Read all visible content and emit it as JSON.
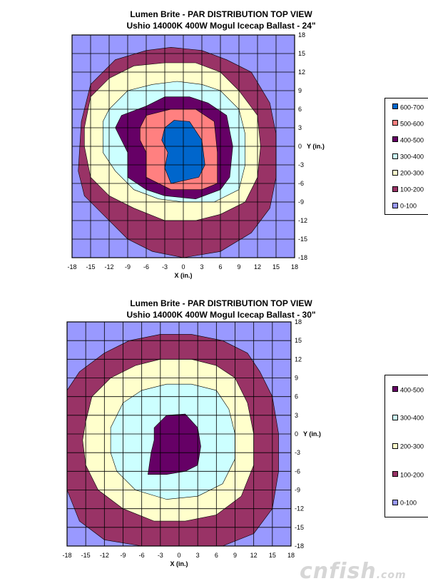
{
  "colors": {
    "0-100": "#9999ff",
    "100-200": "#993366",
    "200-300": "#ffffcc",
    "300-400": "#ccffff",
    "400-500": "#660066",
    "500-600": "#ff8080",
    "600-700": "#0066cc"
  },
  "chart_data": [
    {
      "type": "contour",
      "title": "Lumen Brite - PAR DISTRIBUTION TOP VIEW",
      "subtitle": "Ushio 14000K 400W Mogul Icecap Ballast - 24\"",
      "xlabel": "X (in.)",
      "ylabel": "Y (in.)",
      "xlim": [
        -18,
        18
      ],
      "ylim": [
        -18,
        18
      ],
      "xticks": [
        "-18",
        "-15",
        "-12",
        "-9",
        "-6",
        "-3",
        "0",
        "3",
        "6",
        "9",
        "12",
        "15",
        "18"
      ],
      "yticks": [
        "18",
        "15",
        "12",
        "9",
        "6",
        "3",
        "0",
        "-3",
        "-6",
        "-9",
        "-12",
        "-15",
        "-18"
      ],
      "legend": [
        "600-700",
        "500-600",
        "400-500",
        "300-400",
        "200-300",
        "100-200",
        "0-100"
      ],
      "contours": [
        {
          "level": "100-200",
          "points": [
            [
              -17,
              -4
            ],
            [
              -16.5,
              4
            ],
            [
              -15,
              10
            ],
            [
              -11,
              14
            ],
            [
              -6,
              15.5
            ],
            [
              -2,
              16
            ],
            [
              3,
              15.5
            ],
            [
              7,
              14
            ],
            [
              11,
              12
            ],
            [
              14,
              7
            ],
            [
              15,
              2
            ],
            [
              15,
              -5
            ],
            [
              14,
              -10
            ],
            [
              11,
              -14
            ],
            [
              6,
              -17
            ],
            [
              0,
              -18
            ],
            [
              -5,
              -17
            ],
            [
              -9,
              -15
            ],
            [
              -13,
              -11
            ],
            [
              -16,
              -8
            ]
          ]
        },
        {
          "level": "200-300",
          "points": [
            [
              -16,
              3
            ],
            [
              -15,
              8
            ],
            [
              -12,
              11
            ],
            [
              -8,
              13
            ],
            [
              -3,
              13.5
            ],
            [
              2,
              13.5
            ],
            [
              6,
              12
            ],
            [
              9,
              9
            ],
            [
              12,
              5
            ],
            [
              12.5,
              0
            ],
            [
              12,
              -5
            ],
            [
              10,
              -9
            ],
            [
              6,
              -11
            ],
            [
              2,
              -12
            ],
            [
              -3,
              -12
            ],
            [
              -8,
              -10
            ],
            [
              -12,
              -8
            ],
            [
              -15,
              -5
            ],
            [
              -16,
              0
            ]
          ]
        },
        {
          "level": "300-400",
          "points": [
            [
              -13,
              4
            ],
            [
              -12,
              6
            ],
            [
              -9,
              9
            ],
            [
              -5,
              10
            ],
            [
              -1,
              10.5
            ],
            [
              3,
              10
            ],
            [
              6,
              9
            ],
            [
              9,
              6
            ],
            [
              10,
              2
            ],
            [
              10,
              -3
            ],
            [
              9,
              -7
            ],
            [
              5,
              -9
            ],
            [
              0,
              -9
            ],
            [
              -4,
              -8.5
            ],
            [
              -8,
              -7
            ],
            [
              -11,
              -4
            ],
            [
              -13,
              -1
            ]
          ]
        },
        {
          "level": "400-500",
          "points": [
            [
              -11,
              3
            ],
            [
              -10,
              5
            ],
            [
              -6,
              6.5
            ],
            [
              -3,
              8
            ],
            [
              1,
              8
            ],
            [
              4,
              7
            ],
            [
              7,
              5
            ],
            [
              8,
              0
            ],
            [
              7.5,
              -5
            ],
            [
              6,
              -7
            ],
            [
              2,
              -8.5
            ],
            [
              -3,
              -8
            ],
            [
              -6,
              -7
            ],
            [
              -9,
              -5
            ],
            [
              -9,
              -1
            ],
            [
              -10,
              1
            ]
          ]
        },
        {
          "level": "500-600",
          "points": [
            [
              -7,
              3
            ],
            [
              -6,
              5
            ],
            [
              -2,
              6
            ],
            [
              2,
              6
            ],
            [
              5,
              4
            ],
            [
              5.5,
              -1
            ],
            [
              5.5,
              -6
            ],
            [
              3,
              -7
            ],
            [
              -2,
              -7
            ],
            [
              -6,
              -5
            ],
            [
              -6,
              -1
            ],
            [
              -7,
              1
            ]
          ]
        },
        {
          "level": "600-700",
          "points": [
            [
              -3,
              3
            ],
            [
              -1.5,
              4.2
            ],
            [
              1,
              4
            ],
            [
              3,
              1
            ],
            [
              3.5,
              -3
            ],
            [
              2.5,
              -5
            ],
            [
              -2,
              -6
            ],
            [
              -3,
              -3.5
            ],
            [
              -2.5,
              -1
            ],
            [
              -3.5,
              1
            ]
          ]
        }
      ]
    },
    {
      "type": "contour",
      "title": "Lumen Brite - PAR DISTRIBUTION TOP VIEW",
      "subtitle": "Ushio 14000K 400W Mogul Icecap Ballast - 30\"",
      "xlabel": "X (in.)",
      "ylabel": "Y (in.)",
      "xlim": [
        -18,
        18
      ],
      "ylim": [
        -18,
        18
      ],
      "xticks": [
        "-18",
        "-15",
        "-12",
        "-9",
        "-6",
        "-3",
        "0",
        "3",
        "6",
        "9",
        "12",
        "15",
        "18"
      ],
      "yticks": [
        "18",
        "15",
        "12",
        "9",
        "6",
        "3",
        "0",
        "-3",
        "-6",
        "-9",
        "-12",
        "-15",
        "-18"
      ],
      "legend": [
        "400-500",
        "300-400",
        "200-300",
        "100-200",
        "0-100"
      ],
      "contours": [
        {
          "level": "100-200",
          "points": [
            [
              -18,
              -2
            ],
            [
              -18,
              7
            ],
            [
              -16,
              10
            ],
            [
              -12,
              13
            ],
            [
              -8,
              15
            ],
            [
              -3,
              16
            ],
            [
              2,
              16
            ],
            [
              7,
              15
            ],
            [
              11,
              13
            ],
            [
              13,
              10
            ],
            [
              15,
              6
            ],
            [
              16,
              0
            ],
            [
              16,
              -6
            ],
            [
              15,
              -12
            ],
            [
              12,
              -16
            ],
            [
              7,
              -18
            ],
            [
              0,
              -18
            ],
            [
              -6,
              -18
            ],
            [
              -12,
              -17
            ],
            [
              -16,
              -14
            ],
            [
              -18,
              -9
            ]
          ]
        },
        {
          "level": "200-300",
          "points": [
            [
              -15,
              2
            ],
            [
              -14,
              6
            ],
            [
              -11,
              9
            ],
            [
              -7,
              11
            ],
            [
              -3,
              12
            ],
            [
              2,
              12
            ],
            [
              6,
              11
            ],
            [
              9,
              9
            ],
            [
              11,
              5
            ],
            [
              12,
              0
            ],
            [
              12,
              -5
            ],
            [
              10,
              -10
            ],
            [
              6,
              -13
            ],
            [
              1,
              -14
            ],
            [
              -4,
              -14
            ],
            [
              -9,
              -12
            ],
            [
              -13,
              -9
            ],
            [
              -15,
              -5
            ],
            [
              -15.5,
              -1
            ]
          ]
        },
        {
          "level": "300-400",
          "points": [
            [
              -11,
              1
            ],
            [
              -9,
              5
            ],
            [
              -6,
              7
            ],
            [
              -2,
              8
            ],
            [
              2,
              8
            ],
            [
              6,
              7
            ],
            [
              8,
              4
            ],
            [
              9,
              0
            ],
            [
              9,
              -4
            ],
            [
              7,
              -8
            ],
            [
              3,
              -10
            ],
            [
              -2,
              -10.5
            ],
            [
              -7,
              -9
            ],
            [
              -10,
              -6
            ],
            [
              -11,
              -3
            ]
          ]
        },
        {
          "level": "400-500",
          "points": [
            [
              -4,
              1
            ],
            [
              -2,
              3
            ],
            [
              1,
              3.2
            ],
            [
              3,
              1
            ],
            [
              3.5,
              -2
            ],
            [
              3,
              -5
            ],
            [
              1,
              -6
            ],
            [
              -2,
              -6.5
            ],
            [
              -5,
              -6.5
            ],
            [
              -4.5,
              -3
            ],
            [
              -4,
              -1
            ]
          ]
        }
      ]
    }
  ],
  "watermark": "cnfish"
}
